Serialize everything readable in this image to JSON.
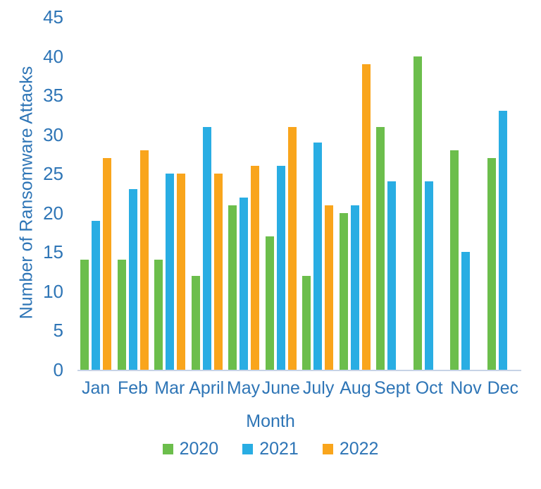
{
  "colors": {
    "text": "#2E75B6",
    "axis_line": "#C7D3E6",
    "series_2020": "#6CBE4C",
    "series_2021": "#29ADE3",
    "series_2022": "#F9A51C"
  },
  "chart_data": {
    "type": "bar",
    "title": "",
    "xlabel": "Month",
    "ylabel": "Number of Ransomware Attacks",
    "categories": [
      "Jan",
      "Feb",
      "Mar",
      "April",
      "May",
      "June",
      "July",
      "Aug",
      "Sept",
      "Oct",
      "Nov",
      "Dec"
    ],
    "series": [
      {
        "name": "2020",
        "color": "#6CBE4C",
        "values": [
          14,
          14,
          14,
          12,
          21,
          17,
          12,
          20,
          31,
          40,
          28,
          27
        ]
      },
      {
        "name": "2021",
        "color": "#29ADE3",
        "values": [
          19,
          23,
          25,
          31,
          22,
          26,
          29,
          21,
          24,
          24,
          15,
          33
        ]
      },
      {
        "name": "2022",
        "color": "#F9A51C",
        "values": [
          27,
          28,
          25,
          25,
          26,
          31,
          21,
          39,
          null,
          null,
          null,
          null
        ]
      }
    ],
    "yticks": [
      0,
      5,
      10,
      15,
      20,
      25,
      30,
      35,
      40,
      45
    ],
    "ylim": [
      0,
      45
    ],
    "grid": false,
    "legend_position": "bottom"
  }
}
